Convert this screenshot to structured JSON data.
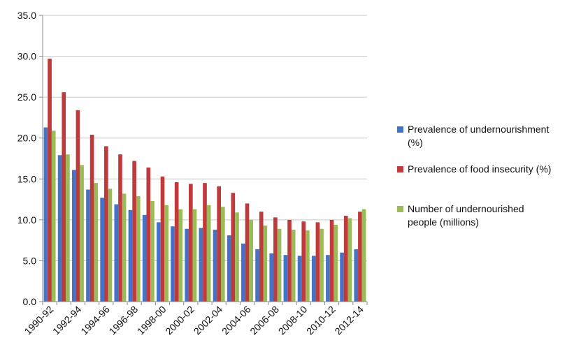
{
  "chart_data": {
    "type": "bar",
    "categories": [
      "1990-92",
      "1991-93",
      "1992-94",
      "1993-95",
      "1994-96",
      "1995-97",
      "1996-98",
      "1997-99",
      "1998-00",
      "1999-01",
      "2000-02",
      "2001-03",
      "2002-04",
      "2003-05",
      "2004-06",
      "2005-07",
      "2006-08",
      "2007-09",
      "2008-10",
      "2009-11",
      "2010-12",
      "2011-13",
      "2012-14"
    ],
    "x_tick_labels_shown": [
      "1990-92",
      "1992-94",
      "1994-96",
      "1996-98",
      "1998-00",
      "2000-02",
      "2002-04",
      "2004-06",
      "2006-08",
      "2008-10",
      "2010-12",
      "2012-14"
    ],
    "series": [
      {
        "name_lines": [
          "Prevalence of undernourishment",
          "(%)"
        ],
        "color": "#4472C4",
        "values": [
          21.3,
          17.9,
          16.1,
          13.7,
          12.7,
          11.9,
          11.2,
          10.6,
          9.7,
          9.2,
          8.9,
          9.0,
          8.8,
          8.1,
          7.1,
          6.4,
          5.9,
          5.7,
          5.6,
          5.6,
          5.7,
          6.0,
          6.4
        ]
      },
      {
        "name_lines": [
          "Prevalence of food insecurity (%)"
        ],
        "color": "#C0393B",
        "values": [
          29.7,
          25.6,
          23.4,
          20.4,
          19.0,
          18.0,
          17.2,
          16.4,
          15.3,
          14.6,
          14.4,
          14.5,
          14.1,
          13.3,
          12.0,
          11.0,
          10.3,
          10.0,
          9.8,
          9.7,
          10.0,
          10.5,
          11.0
        ]
      },
      {
        "name_lines": [
          "Number of undernourished",
          "people (millions)"
        ],
        "color": "#9BBB59",
        "values": [
          20.9,
          18.0,
          16.7,
          14.5,
          13.8,
          13.2,
          12.9,
          12.3,
          11.8,
          11.3,
          11.3,
          11.8,
          11.6,
          10.9,
          10.0,
          9.3,
          8.9,
          8.8,
          8.7,
          8.9,
          9.4,
          10.2,
          11.3
        ]
      }
    ],
    "y_tick_labels": [
      "0.0",
      "5.0",
      "10.0",
      "15.0",
      "20.0",
      "25.0",
      "30.0",
      "35.0"
    ],
    "ylim": [
      0,
      35
    ],
    "grid": true,
    "legend_placement": "right"
  }
}
